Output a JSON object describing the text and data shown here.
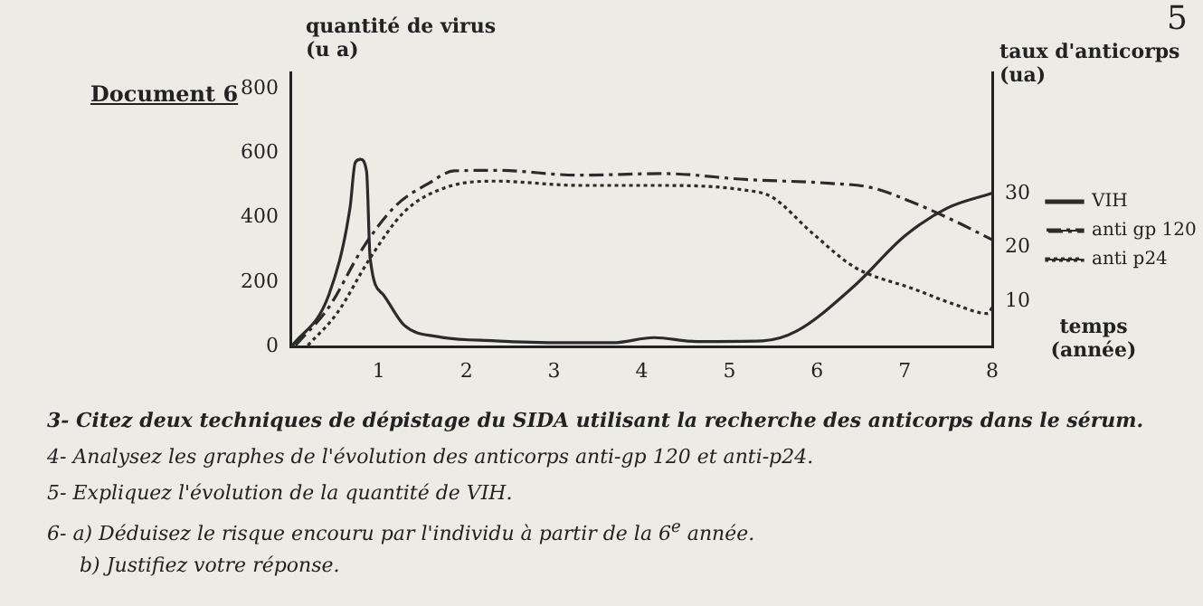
{
  "chart_data": {
    "type": "line",
    "title": "Document 6",
    "ylabel": "quantité de virus (u a)",
    "y2label": "taux d'anticorps (ua)",
    "xlabel": "temps (année)",
    "x": [
      0,
      0.43,
      0.67,
      0.73,
      0.79,
      0.86,
      0.9,
      1.05,
      1.29,
      1.67,
      2.33,
      3.1,
      3.67,
      4.14,
      4.62,
      5.38,
      5.76,
      6.43,
      7,
      7.48,
      8
    ],
    "series": [
      {
        "name": "VIH",
        "color": "#2b2b2b",
        "line_style": "solid",
        "values": [
          0,
          162,
          429,
          571,
          581,
          543,
          276,
          162,
          67,
          32,
          19,
          13,
          13,
          29,
          17,
          19,
          48,
          190,
          343,
          429,
          476
        ]
      },
      {
        "name": "anti gp 120",
        "color": "#2b2b2b",
        "line_style": "dashed",
        "axis": "y2",
        "x": [
          0.05,
          0.43,
          0.81,
          1.19,
          1.57,
          1.86,
          2.33,
          3.29,
          4.24,
          5.19,
          6.14,
          6.62,
          7.1,
          7.57,
          8
        ],
        "values": [
          1.8,
          8.9,
          19.7,
          27.7,
          31.9,
          34.2,
          34.3,
          33.4,
          33.7,
          32.6,
          31.9,
          31.1,
          28.3,
          24.9,
          21.4
        ]
      },
      {
        "name": "anti p24",
        "color": "#2b2b2b",
        "line_style": "dotted",
        "axis": "y2",
        "x": [
          0.19,
          0.52,
          0.9,
          1.29,
          1.76,
          2.33,
          3.29,
          4.24,
          5.19,
          5.48,
          5.95,
          6.43,
          7.1,
          7.57,
          7.95,
          8
        ],
        "values": [
          1.8,
          7.7,
          18,
          26.6,
          31.1,
          32.3,
          31.5,
          31.5,
          30.6,
          29.4,
          22.6,
          16.3,
          12.3,
          9.4,
          7.7,
          8.9
        ]
      }
    ],
    "xlim": [
      0,
      8
    ],
    "xticks": [
      1,
      2,
      3,
      4,
      5,
      6,
      7,
      8
    ],
    "ylim": [
      0,
      850
    ],
    "yticks": [
      0,
      200,
      400,
      600,
      800
    ],
    "y2lim": [
      1.5,
      52.5
    ],
    "y2ticks": [
      10,
      20,
      30
    ],
    "grid": false,
    "legend": "right",
    "marker": "none",
    "annotations": [
      "5",
      "3- Citez deux techniques de dépistage du SIDA utilisant la recherche des anticorps dans le sérum.",
      "4- Analysez les graphes de l'évolution des anticorps anti-gp 120 et anti-p24.",
      "5- Expliquez l'évolution de la quantité de VIH.",
      "6- a) Déduisez le risque encouru par l'individu à partir de la 6$^{e}$ année.",
      "b) Justifiez votre réponse."
    ]
  }
}
